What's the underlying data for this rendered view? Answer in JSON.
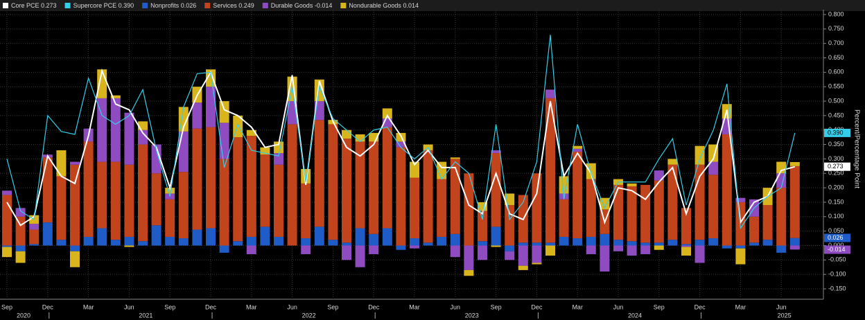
{
  "chart_data": {
    "type": "bar",
    "y_label": "Percent/Percentage Point",
    "categories": [
      "Sep",
      null,
      null,
      "Dec",
      null,
      null,
      "Mar",
      null,
      null,
      "Jun",
      null,
      null,
      "Sep",
      null,
      null,
      "Dec",
      null,
      null,
      "Mar",
      null,
      null,
      "Jun",
      null,
      null,
      "Sep",
      null,
      null,
      "Dec",
      null,
      null,
      "Mar",
      null,
      null,
      "Jun",
      null,
      null,
      "Sep",
      null,
      null,
      "Dec",
      null,
      null,
      "Mar",
      null,
      null,
      "Jun",
      null,
      null,
      "Sep",
      null,
      null,
      "Dec",
      null,
      null,
      "Mar",
      null,
      null,
      "Jun",
      null
    ],
    "year_labels": [
      "2020",
      null,
      null,
      null,
      null,
      null,
      null,
      null,
      null,
      "2021",
      null,
      null,
      null,
      null,
      null,
      null,
      null,
      null,
      null,
      null,
      null,
      "2022",
      null,
      null,
      null,
      null,
      null,
      null,
      null,
      null,
      null,
      null,
      null,
      "2023",
      null,
      null,
      null,
      null,
      null,
      null,
      null,
      null,
      null,
      null,
      null,
      "2024",
      null,
      null,
      null,
      null,
      null,
      null,
      null,
      null,
      null,
      null,
      "2025",
      null,
      null
    ],
    "ylim": [
      -0.19,
      0.82
    ],
    "yticks": [
      {
        "value": -0.15,
        "label": "-0.150"
      },
      {
        "value": -0.1,
        "label": "-0.100"
      },
      {
        "value": -0.05,
        "label": "-0.050"
      },
      {
        "value": 0,
        "label": "0.000"
      },
      {
        "value": 0.05,
        "label": "0.050"
      },
      {
        "value": 0.1,
        "label": "0.100"
      },
      {
        "value": 0.15,
        "label": "0.150"
      },
      {
        "value": 0.2,
        "label": "0.200"
      },
      {
        "value": 0.25,
        "label": "0.250"
      },
      {
        "value": 0.3,
        "label": "0.300"
      },
      {
        "value": 0.35,
        "label": "0.350"
      },
      {
        "value": 0.4,
        "label": "0.400"
      },
      {
        "value": 0.45,
        "label": "0.450"
      },
      {
        "value": 0.5,
        "label": "0.500"
      },
      {
        "value": 0.55,
        "label": "0.550"
      },
      {
        "value": 0.6,
        "label": "0.600"
      },
      {
        "value": 0.65,
        "label": "0.650"
      },
      {
        "value": 0.7,
        "label": "0.700"
      },
      {
        "value": 0.75,
        "label": "0.750"
      },
      {
        "value": 0.8,
        "label": "0.800"
      }
    ],
    "grid": true,
    "series": [
      {
        "name": "Core PCE",
        "last_label": "0.273",
        "mark": "line",
        "color": "#ffffff",
        "label_text_color": "#000000",
        "value_box": true,
        "values": [
          0.15,
          0.07,
          0.1,
          0.31,
          0.24,
          0.215,
          0.38,
          0.605,
          0.49,
          0.47,
          0.39,
          0.34,
          0.2,
          0.41,
          0.52,
          0.6,
          0.47,
          0.45,
          0.41,
          0.34,
          0.35,
          0.59,
          0.21,
          0.57,
          0.43,
          0.34,
          0.31,
          0.35,
          0.45,
          0.38,
          0.28,
          0.33,
          0.27,
          0.27,
          0.14,
          0.11,
          0.25,
          0.11,
          0.09,
          0.18,
          0.5,
          0.24,
          0.32,
          0.25,
          0.08,
          0.2,
          0.19,
          0.16,
          0.22,
          0.27,
          0.11,
          0.24,
          0.3,
          0.47,
          0.08,
          0.15,
          0.17,
          0.26,
          0.273
        ]
      },
      {
        "name": "Supercore PCE",
        "last_label": "0.390",
        "mark": "line",
        "color": "#35cde8",
        "label_text_color": "#000000",
        "value_box": true,
        "values": [
          0.3,
          0.12,
          0.09,
          0.45,
          0.395,
          0.385,
          0.58,
          0.45,
          0.42,
          0.45,
          0.54,
          0.33,
          0.17,
          0.48,
          0.595,
          0.6,
          0.27,
          0.42,
          0.33,
          0.32,
          0.31,
          0.55,
          0.22,
          0.55,
          0.44,
          0.4,
          0.36,
          0.4,
          0.41,
          0.34,
          0.3,
          0.34,
          0.23,
          0.29,
          0.25,
          0.09,
          0.42,
          0.09,
          0.15,
          0.29,
          0.73,
          0.16,
          0.42,
          0.25,
          0.13,
          0.22,
          0.22,
          0.22,
          0.3,
          0.37,
          0.14,
          0.3,
          0.4,
          0.56,
          0.06,
          0.13,
          0.17,
          0.2,
          0.39
        ]
      },
      {
        "name": "Nonprofits",
        "last_label": "0.026",
        "mark": "bar",
        "color": "#1f5cc8",
        "label_text_color": "#ffffff",
        "value_box": true,
        "values": [
          -0.005,
          -0.02,
          0.005,
          0.08,
          0.02,
          -0.02,
          0.03,
          0.06,
          0.02,
          0.03,
          0.015,
          0.07,
          0.03,
          0.025,
          0.055,
          0.06,
          -0.025,
          0.015,
          0.03,
          0.065,
          0.03,
          0,
          0.025,
          0.065,
          0.02,
          0.01,
          0.06,
          0.04,
          0.06,
          -0.015,
          0.025,
          0.01,
          0.03,
          0.04,
          0,
          0.015,
          0.065,
          -0.02,
          0.01,
          0.01,
          0.01,
          0.03,
          0.025,
          0.03,
          0.04,
          0.02,
          0.015,
          0.01,
          0.01,
          0.02,
          0.005,
          0.02,
          0.025,
          -0.01,
          -0.01,
          0.01,
          0.02,
          -0.025,
          0.026
        ]
      },
      {
        "name": "Services",
        "last_label": "0.249",
        "mark": "bar",
        "color": "#c2441c",
        "label_text_color": "#ffffff",
        "value_box": false,
        "values": [
          0.175,
          0.1,
          0.05,
          0.225,
          0.22,
          0.28,
          0.33,
          0.23,
          0.27,
          0.25,
          0.335,
          0.18,
          0.13,
          0.23,
          0.35,
          0.35,
          0.3,
          0.36,
          0.35,
          0.25,
          0.25,
          0.42,
          0.19,
          0.37,
          0.4,
          0.36,
          0.3,
          0.32,
          0.35,
          0.34,
          0.21,
          0.32,
          0.2,
          0.26,
          0.25,
          0.105,
          0.255,
          0.14,
          0.165,
          0.24,
          0.5,
          0.13,
          0.3,
          0.2,
          0.085,
          0.19,
          0.19,
          0.2,
          0.215,
          0.26,
          0.125,
          0.26,
          0.22,
          0.385,
          0.15,
          0.09,
          0.12,
          0.2,
          0.249
        ]
      },
      {
        "name": "Durable Goods",
        "last_label": "-0.014",
        "mark": "bar",
        "color": "#8e4cc0",
        "label_text_color": "#ffffff",
        "value_box": true,
        "values": [
          0.015,
          0.03,
          0.02,
          0.01,
          0,
          0.01,
          0.045,
          0.22,
          0.22,
          0.18,
          0.05,
          0.1,
          0.02,
          0.14,
          0.09,
          0.14,
          0.125,
          0,
          -0.03,
          0,
          0.04,
          0.08,
          -0.03,
          0.065,
          0,
          -0.05,
          -0.075,
          -0.03,
          0.03,
          0.02,
          -0.01,
          0,
          0,
          -0.04,
          -0.085,
          -0.05,
          0.01,
          -0.03,
          -0.07,
          -0.06,
          0.03,
          0.02,
          0.01,
          -0.03,
          -0.09,
          -0.02,
          -0.035,
          -0.03,
          0.035,
          0,
          -0.005,
          -0.06,
          0.045,
          0.055,
          0.015,
          0.06,
          0,
          0.05,
          -0.014
        ]
      },
      {
        "name": "Nondurable Goods",
        "last_label": "0.014",
        "mark": "bar",
        "color": "#d8b51c",
        "label_text_color": "#000000",
        "value_box": false,
        "values": [
          -0.035,
          -0.04,
          0.03,
          0,
          0.09,
          -0.055,
          0,
          0.1,
          0.01,
          -0.005,
          0.03,
          0,
          0.02,
          0.085,
          0.055,
          0.06,
          0.075,
          0.075,
          0.02,
          0.025,
          0.04,
          0.085,
          0.05,
          0.075,
          0.015,
          0.03,
          0.025,
          0.03,
          0.035,
          0.03,
          0.055,
          0.02,
          0.06,
          0.005,
          -0.02,
          0.03,
          -0.005,
          0.04,
          -0.015,
          -0.005,
          -0.035,
          0.06,
          0.01,
          0.055,
          0.04,
          0.02,
          0.01,
          0,
          -0.015,
          0.02,
          -0.03,
          0.065,
          0.06,
          0.05,
          -0.055,
          0,
          0.06,
          0.04,
          0.014
        ]
      }
    ]
  }
}
